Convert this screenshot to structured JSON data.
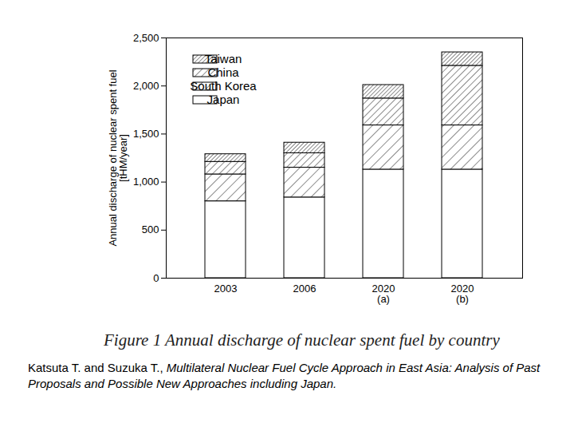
{
  "chart_data": {
    "type": "bar",
    "stacked": true,
    "title": "Figure 1 Annual discharge of nuclear spent fuel by country",
    "y_label": "Annual discharge of nuclear spent fuel\n[tHM/year]",
    "categories": [
      "2003",
      "2006",
      "2020\n(a)",
      "2020\n(b)"
    ],
    "series": [
      {
        "name": "Japan",
        "values": [
          800,
          840,
          1130,
          1130
        ]
      },
      {
        "name": "South Korea",
        "values": [
          280,
          310,
          460,
          460
        ]
      },
      {
        "name": "China",
        "values": [
          130,
          150,
          280,
          620
        ]
      },
      {
        "name": "Taiwan",
        "values": [
          80,
          110,
          140,
          140
        ]
      }
    ],
    "ylim": [
      0,
      2500
    ],
    "yticks": [
      0,
      500,
      {
        "value": 1000,
        "label": "1,000"
      },
      {
        "value": 1500,
        "label": "1,500"
      },
      {
        "value": 2000,
        "label": "2,000"
      },
      {
        "value": 2500,
        "label": "2,500"
      }
    ],
    "grid": false,
    "legend": "top-left",
    "source": {
      "authors": "Katsuta T. and Suzuka T., ",
      "title": "Multilateral Nuclear Fuel Cycle Approach in East Asia: Analysis of Past Proposals and Possible New Approaches including Japan."
    }
  }
}
